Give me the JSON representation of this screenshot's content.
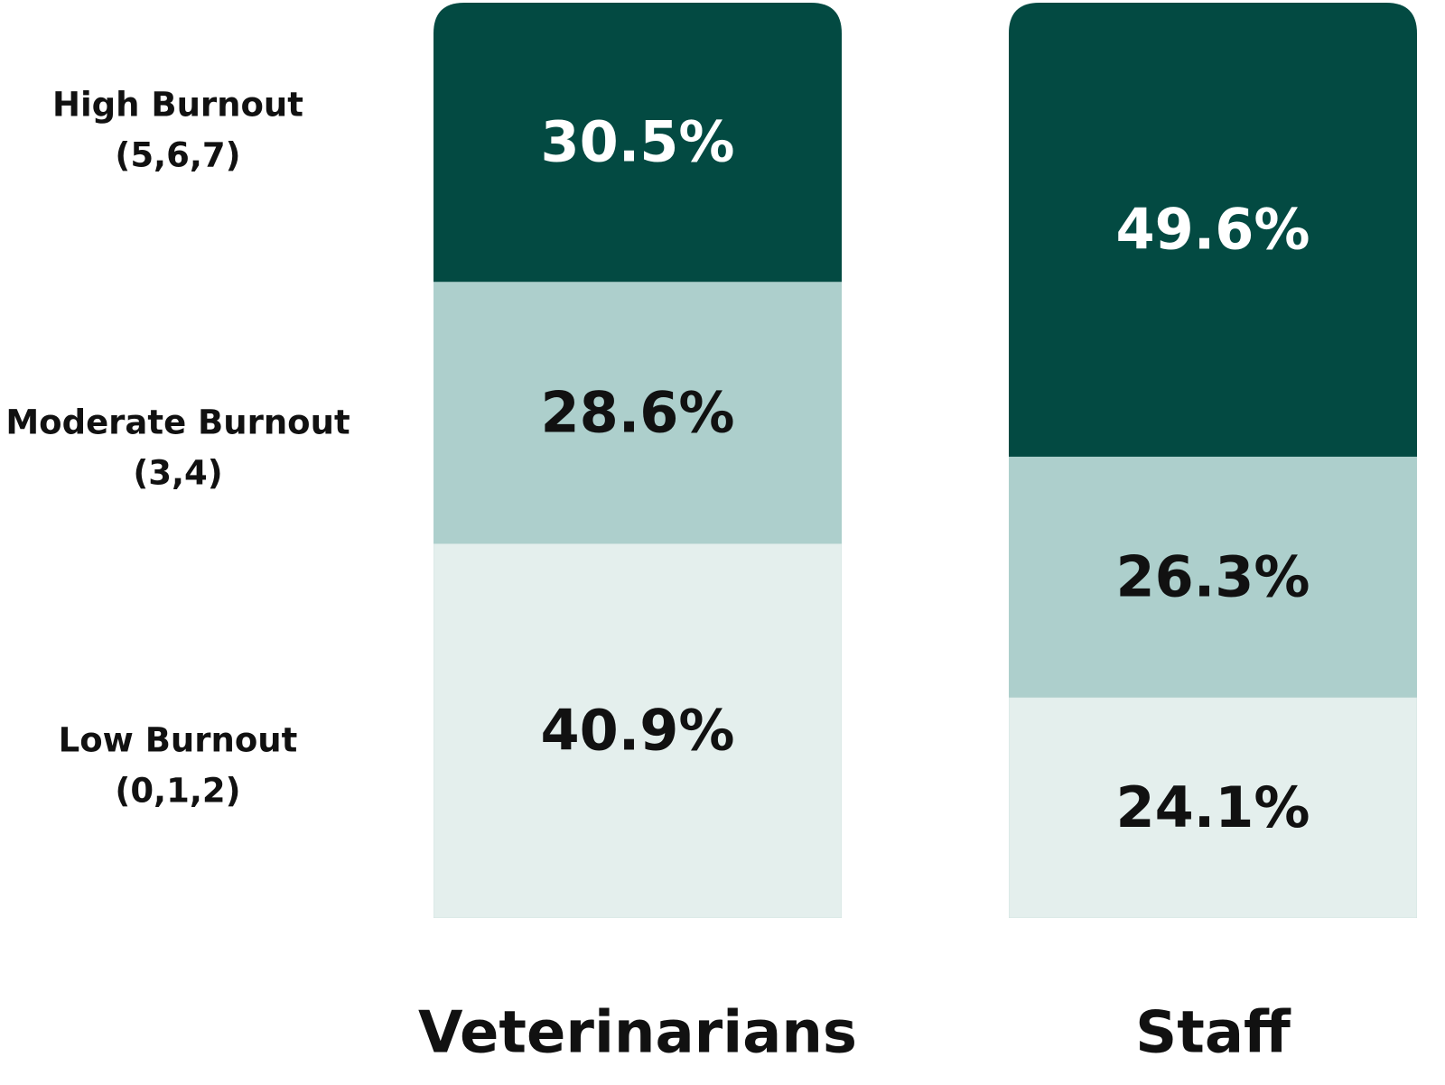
{
  "chart_data": {
    "type": "bar",
    "stacked": true,
    "normalized_percent": true,
    "categories": [
      "Veterinarians",
      "Staff"
    ],
    "series": [
      {
        "name": "Low Burnout\n(0,1,2)",
        "values": [
          40.9,
          24.1
        ],
        "labels": [
          "40.9%",
          "24.1%"
        ]
      },
      {
        "name": "Moderate Burnout\n(3,4)",
        "values": [
          28.6,
          26.3
        ],
        "labels": [
          "28.6%",
          "26.3%"
        ]
      },
      {
        "name": "High Burnout\n(5,6,7)",
        "values": [
          30.5,
          49.6
        ],
        "labels": [
          "30.5%",
          "49.6%"
        ]
      }
    ],
    "ylim": [
      0,
      100
    ],
    "title": "",
    "xlabel": "",
    "ylabel": "",
    "grid": false,
    "legend": "left",
    "colors": {
      "high": "#034a42",
      "moderate": "#adcfcc",
      "low": "#e4efed",
      "label_on_dark": "#ffffff",
      "label_on_light": "#111111"
    }
  }
}
